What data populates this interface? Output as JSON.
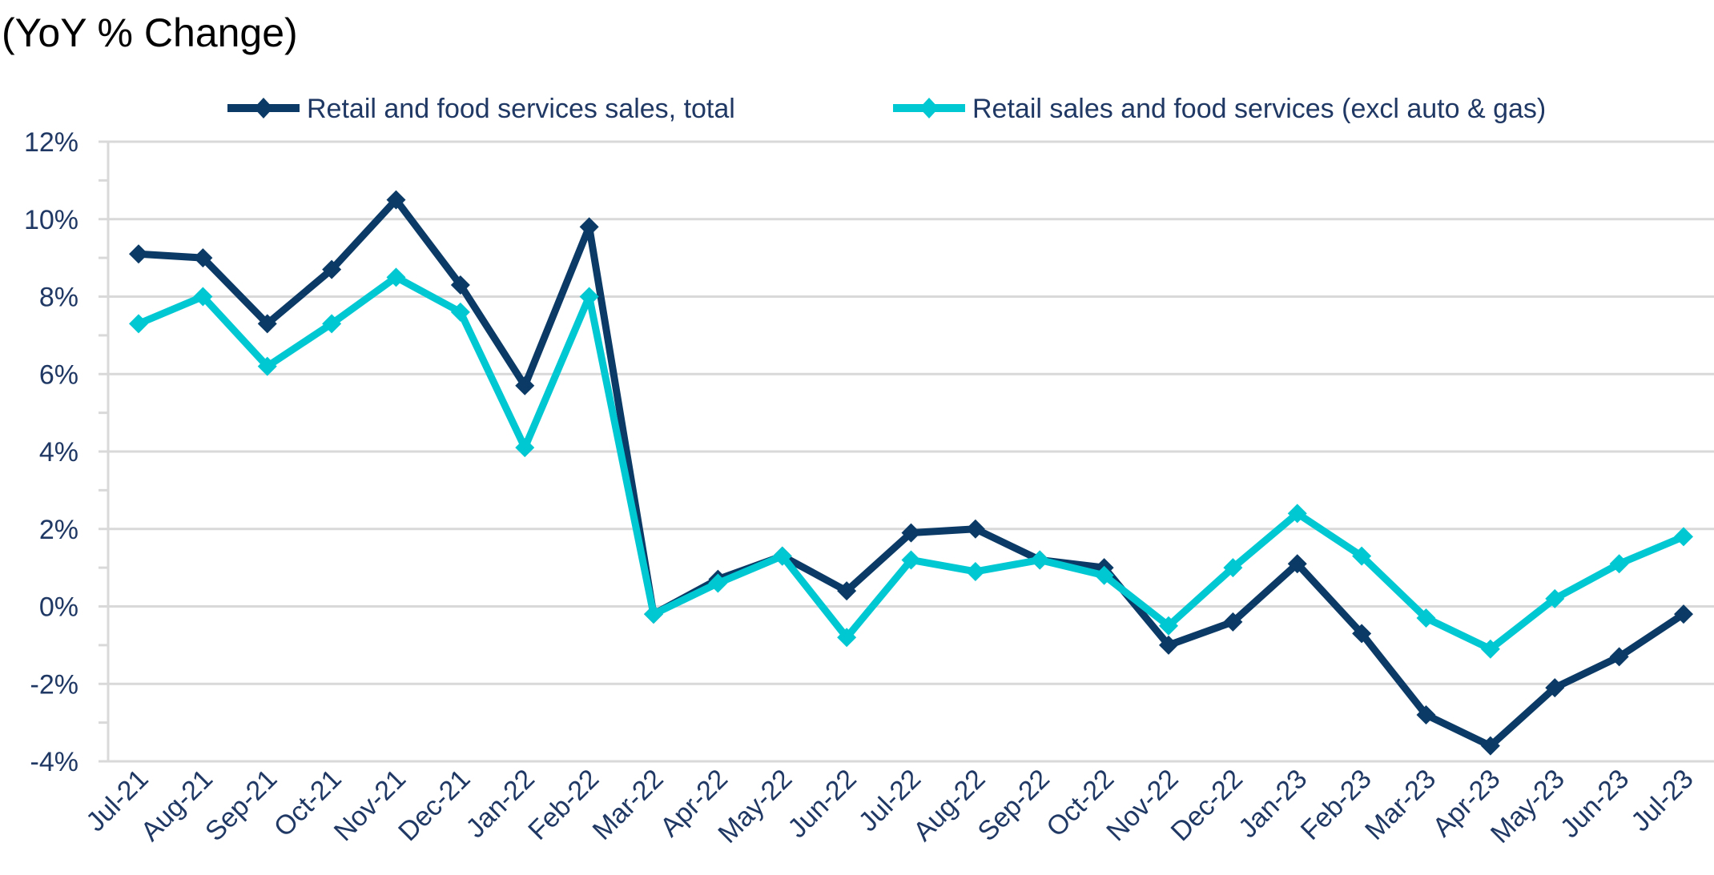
{
  "chart_data": {
    "type": "line",
    "title": "(YoY % Change)",
    "xlabel": "",
    "ylabel": "",
    "ylim": [
      -4,
      12
    ],
    "y_ticks": [
      "-4%",
      "-2%",
      "0%",
      "2%",
      "4%",
      "6%",
      "8%",
      "10%",
      "12%"
    ],
    "y_tick_values": [
      -4,
      -2,
      0,
      2,
      4,
      6,
      8,
      10,
      12
    ],
    "grid": true,
    "legend_position": "top",
    "categories": [
      "Jul-21",
      "Aug-21",
      "Sep-21",
      "Oct-21",
      "Nov-21",
      "Dec-21",
      "Jan-22",
      "Feb-22",
      "Mar-22",
      "Apr-22",
      "May-22",
      "Jun-22",
      "Jul-22",
      "Aug-22",
      "Sep-22",
      "Oct-22",
      "Nov-22",
      "Dec-22",
      "Jan-23",
      "Feb-23",
      "Mar-23",
      "Apr-23",
      "May-23",
      "Jun-23",
      "Jul-23"
    ],
    "series": [
      {
        "name": "Retail and food services sales, total",
        "color": "#0b3a66",
        "marker": "diamond",
        "values": [
          9.1,
          9.0,
          7.3,
          8.7,
          10.5,
          8.3,
          5.7,
          9.8,
          -0.2,
          0.7,
          1.3,
          0.4,
          1.9,
          2.0,
          1.2,
          1.0,
          -1.0,
          -0.4,
          1.1,
          -0.7,
          -2.8,
          -3.6,
          -2.1,
          -1.3,
          -0.2
        ]
      },
      {
        "name": "Retail sales and food services (excl auto & gas)",
        "color": "#00c8d2",
        "marker": "diamond",
        "values": [
          7.3,
          8.0,
          6.2,
          7.3,
          8.5,
          7.6,
          4.1,
          8.0,
          -0.2,
          0.6,
          1.3,
          -0.8,
          1.2,
          0.9,
          1.2,
          0.8,
          -0.5,
          1.0,
          2.4,
          1.3,
          -0.3,
          -1.1,
          0.2,
          1.1,
          1.8
        ]
      }
    ]
  }
}
